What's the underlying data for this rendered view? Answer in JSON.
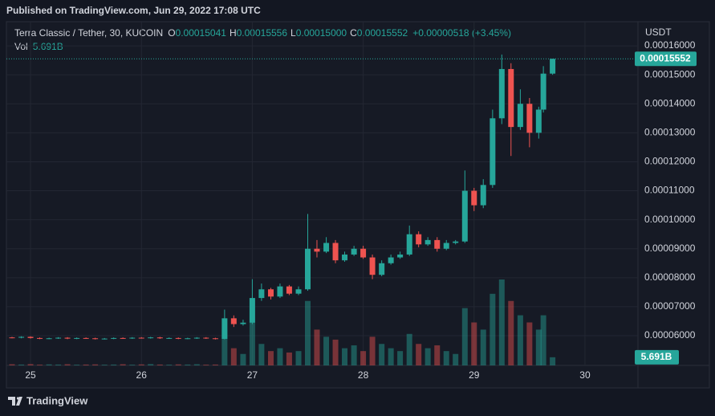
{
  "published": "Published on TradingView.com, Jun 29, 2022 17:08 UTC",
  "footer": "TradingView",
  "chart_data": {
    "type": "candlestick",
    "title": "Terra Classic / Tether, 30, KUCOIN",
    "header_ohlc": [
      {
        "key": "O",
        "value": "0.00015041"
      },
      {
        "key": "H",
        "value": "0.00015556"
      },
      {
        "key": "L",
        "value": "0.00015000"
      },
      {
        "key": "C",
        "value": "0.00015552"
      }
    ],
    "change": "+0.00000518 (+3.45%)",
    "volume_name": "Vol",
    "volume_label": "5.691B",
    "y_axis_label": "USDT",
    "up_color": "#26a69a",
    "down_color": "#ef5350",
    "grid": true,
    "xlim": [
      24.797,
      30.478
    ],
    "xticks": [
      25,
      26,
      27,
      28,
      29,
      30
    ],
    "ylim": [
      4.975e-05,
      0.0001675
    ],
    "yticks": [
      {
        "value": 6e-05,
        "label": "0.00006000"
      },
      {
        "value": 7e-05,
        "label": "0.00007000"
      },
      {
        "value": 8e-05,
        "label": "0.00008000"
      },
      {
        "value": 9e-05,
        "label": "0.00009000"
      },
      {
        "value": 0.0001,
        "label": "0.00010000"
      },
      {
        "value": 0.00011,
        "label": "0.00011000"
      },
      {
        "value": 0.00012,
        "label": "0.00012000"
      },
      {
        "value": 0.00013,
        "label": "0.00013000"
      },
      {
        "value": 0.00014,
        "label": "0.00014000"
      },
      {
        "value": 0.00015,
        "label": "0.00015000"
      },
      {
        "value": 0.00016,
        "label": "0.00016000"
      }
    ],
    "x": [
      24.833,
      24.917,
      25.0,
      25.083,
      25.167,
      25.25,
      25.333,
      25.417,
      25.5,
      25.583,
      25.667,
      25.75,
      25.833,
      25.917,
      26.0,
      26.083,
      26.167,
      26.25,
      26.333,
      26.417,
      26.5,
      26.583,
      26.667,
      26.75,
      26.833,
      26.917,
      27.0,
      27.083,
      27.167,
      27.25,
      27.333,
      27.417,
      27.5,
      27.583,
      27.667,
      27.75,
      27.833,
      27.917,
      28.0,
      28.083,
      28.167,
      28.25,
      28.333,
      28.417,
      28.5,
      28.583,
      28.667,
      28.75,
      28.833,
      28.917,
      29.0,
      29.083,
      29.167,
      29.25,
      29.333,
      29.417,
      29.5,
      29.583,
      29.625,
      29.708
    ],
    "open": [
      5.94e-05,
      5.93e-05,
      5.96e-05,
      5.92e-05,
      5.9e-05,
      5.91e-05,
      5.93e-05,
      5.9e-05,
      5.92e-05,
      5.91e-05,
      5.89e-05,
      5.9e-05,
      5.92e-05,
      5.91e-05,
      5.93e-05,
      5.92e-05,
      5.94e-05,
      5.91e-05,
      5.92e-05,
      5.9e-05,
      5.91e-05,
      5.93e-05,
      5.91e-05,
      5.89e-05,
      6.6e-05,
      6.4e-05,
      6.45e-05,
      7.3e-05,
      7.6e-05,
      7.35e-05,
      7.7e-05,
      7.45e-05,
      7.6e-05,
      9e-05,
      8.9e-05,
      9.2e-05,
      8.6e-05,
      8.8e-05,
      9e-05,
      8.7e-05,
      8.1e-05,
      8.5e-05,
      8.7e-05,
      8.8e-05,
      9.5e-05,
      9.15e-05,
      9.3e-05,
      9e-05,
      9.2e-05,
      9.25e-05,
      0.00011,
      0.000105,
      0.000112,
      0.000135,
      0.000152,
      0.000132,
      0.00014,
      0.00013,
      0.000138,
      0.00015041
    ],
    "high": [
      5.96e-05,
      5.98e-05,
      5.98e-05,
      5.94e-05,
      5.93e-05,
      5.95e-05,
      5.95e-05,
      5.94e-05,
      5.94e-05,
      5.93e-05,
      5.92e-05,
      5.94e-05,
      5.94e-05,
      5.95e-05,
      5.95e-05,
      5.96e-05,
      5.96e-05,
      5.94e-05,
      5.94e-05,
      5.93e-05,
      5.95e-05,
      5.95e-05,
      5.93e-05,
      6.9e-05,
      6.7e-05,
      6.55e-05,
      7.95e-05,
      7.8e-05,
      7.65e-05,
      7.8e-05,
      7.75e-05,
      7.7e-05,
      0.000102,
      9.3e-05,
      9.4e-05,
      9.3e-05,
      8.9e-05,
      9.1e-05,
      9.1e-05,
      8.8e-05,
      8.6e-05,
      8.8e-05,
      8.9e-05,
      9.8e-05,
      9.6e-05,
      9.4e-05,
      9.4e-05,
      9.3e-05,
      9.3e-05,
      0.000117,
      0.000111,
      0.000114,
      0.000138,
      0.000157,
      0.000154,
      0.000145,
      0.000142,
      0.000139,
      0.000153,
      0.00015556
    ],
    "low": [
      5.91e-05,
      5.91e-05,
      5.9e-05,
      5.88e-05,
      5.88e-05,
      5.89e-05,
      5.88e-05,
      5.88e-05,
      5.89e-05,
      5.87e-05,
      5.87e-05,
      5.88e-05,
      5.89e-05,
      5.89e-05,
      5.9e-05,
      5.9e-05,
      5.89e-05,
      5.89e-05,
      5.88e-05,
      5.88e-05,
      5.89e-05,
      5.89e-05,
      5.87e-05,
      5.87e-05,
      6.3e-05,
      6.35e-05,
      6.4e-05,
      7.2e-05,
      7.25e-05,
      7.3e-05,
      7.4e-05,
      7.4e-05,
      7.55e-05,
      8.7e-05,
      8.85e-05,
      8.5e-05,
      8.55e-05,
      8.75e-05,
      8.65e-05,
      7.95e-05,
      8.05e-05,
      8.45e-05,
      8.65e-05,
      8.75e-05,
      9.05e-05,
      9.1e-05,
      8.9e-05,
      8.95e-05,
      9.15e-05,
      9.2e-05,
      0.000103,
      0.000104,
      0.000111,
      0.000133,
      0.000122,
      0.000131,
      0.000125,
      0.000128,
      0.000137,
      0.00015
    ],
    "close": [
      5.93e-05,
      5.96e-05,
      5.92e-05,
      5.9e-05,
      5.91e-05,
      5.93e-05,
      5.9e-05,
      5.92e-05,
      5.91e-05,
      5.89e-05,
      5.9e-05,
      5.92e-05,
      5.91e-05,
      5.93e-05,
      5.92e-05,
      5.94e-05,
      5.91e-05,
      5.92e-05,
      5.9e-05,
      5.91e-05,
      5.93e-05,
      5.91e-05,
      5.89e-05,
      6.6e-05,
      6.4e-05,
      6.45e-05,
      7.3e-05,
      7.6e-05,
      7.35e-05,
      7.7e-05,
      7.45e-05,
      7.6e-05,
      9e-05,
      8.9e-05,
      9.2e-05,
      8.6e-05,
      8.8e-05,
      9e-05,
      8.7e-05,
      8.1e-05,
      8.5e-05,
      8.7e-05,
      8.8e-05,
      9.5e-05,
      9.15e-05,
      9.3e-05,
      9e-05,
      9.2e-05,
      9.25e-05,
      0.00011,
      0.000105,
      0.000112,
      0.000135,
      0.000152,
      0.000132,
      0.00014,
      0.00013,
      0.000138,
      0.00015041,
      0.00015552
    ],
    "volume": [
      800000000,
      600000000,
      900000000,
      500000000,
      700000000,
      600000000,
      800000000,
      500000000,
      600000000,
      700000000,
      500000000,
      600000000,
      800000000,
      500000000,
      700000000,
      900000000,
      600000000,
      500000000,
      700000000,
      600000000,
      800000000,
      500000000,
      600000000,
      25000000000,
      12000000000,
      8000000000,
      30000000000,
      15000000000,
      10000000000,
      12000000000,
      9000000000,
      10000000000,
      45000000000,
      25000000000,
      20000000000,
      18000000000,
      12000000000,
      14000000000,
      10000000000,
      20000000000,
      15000000000,
      12000000000,
      10000000000,
      22000000000,
      15000000000,
      12000000000,
      14000000000,
      10000000000,
      8000000000,
      40000000000,
      30000000000,
      25000000000,
      50000000000,
      60000000000,
      45000000000,
      35000000000,
      30000000000,
      25000000000,
      35000000000,
      5691000000
    ]
  }
}
